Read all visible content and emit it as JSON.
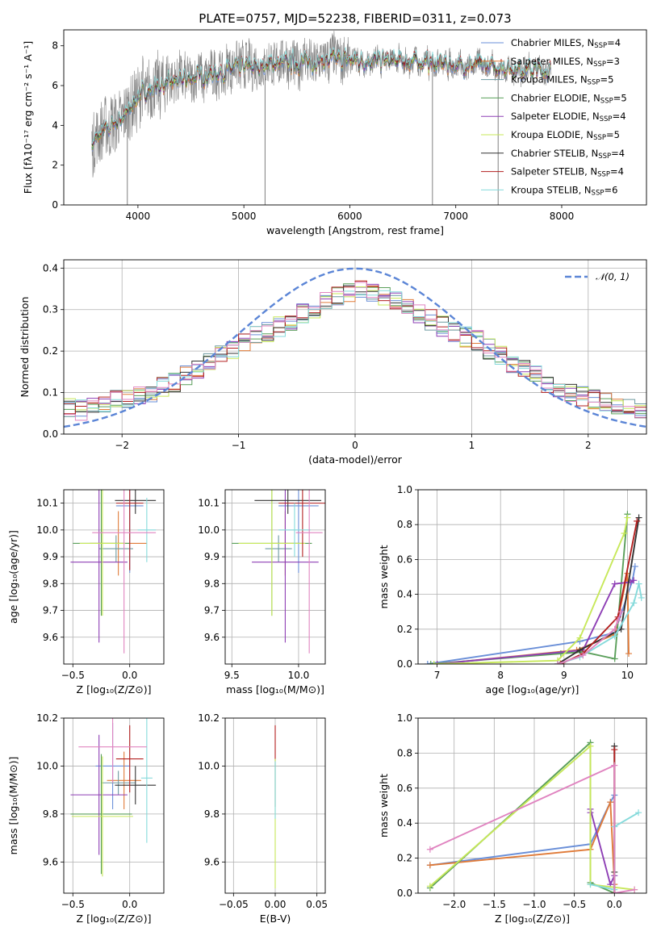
{
  "colors": {
    "Chabrier MILES": "#6a8fd8",
    "Salpeter MILES": "#e07b39",
    "Kroupa MILES": "#6d9aa0",
    "Chabrier ELODIE": "#5a9f5a",
    "Salpeter ELODIE": "#8e3fb5",
    "Kroupa ELODIE": "#c7e85a",
    "Chabrier STELIB": "#333333",
    "Salpeter STELIB": "#b32020",
    "Kroupa STELIB": "#85dadb",
    "Salpeter ELODIE pink": "#e084c0",
    "data": "#808080",
    "normal": "#5b85d6"
  },
  "chart_data": [
    {
      "id": "spectrum",
      "type": "line",
      "title": "PLATE=0757, MJD=52238, FIBERID=0311, z=0.073",
      "xlabel": "wavelength [Angstrom, rest frame]",
      "ylabel": "Flux [fλ10⁻¹⁷ erg cm⁻² s⁻¹ A⁻¹]",
      "xlim": [
        3300,
        8800
      ],
      "ylim": [
        0,
        8.8
      ],
      "xticks": [
        "4000",
        "5000",
        "6000",
        "7000",
        "8000"
      ],
      "yticks": [
        "0",
        "2",
        "4",
        "6",
        "8"
      ],
      "legend_position": "right",
      "legend": [
        "Chabrier MILES, N_SSP=4",
        "Salpeter MILES, N_SSP=3",
        "Kroupa MILES, N_SSP=5",
        "Chabrier ELODIE, N_SSP=5",
        "Salpeter ELODIE, N_SSP=4",
        "Kroupa ELODIE, N_SSP=5",
        "Chabrier STELIB, N_SSP=4",
        "Salpeter STELIB, N_SSP=4",
        "Kroupa STELIB, N_SSP=6"
      ],
      "continuum": {
        "x": [
          3570,
          3650,
          3750,
          3900,
          4000,
          4200,
          4500,
          4800,
          5000,
          5300,
          5600,
          5900,
          6200,
          6500,
          6800,
          7100,
          7400,
          7700,
          7900
        ],
        "y": [
          3.0,
          3.6,
          4.0,
          4.6,
          5.5,
          6.0,
          6.4,
          6.7,
          6.9,
          7.1,
          7.2,
          7.3,
          7.25,
          7.2,
          7.15,
          7.0,
          6.95,
          6.8,
          6.7
        ]
      }
    },
    {
      "id": "residuals",
      "type": "histogram",
      "xlabel": "(data-model)/error",
      "ylabel": "Normed distribution",
      "xlim": [
        -2.5,
        2.5
      ],
      "ylim": [
        0,
        0.42
      ],
      "xticks": [
        "−2",
        "−1",
        "0",
        "1",
        "2"
      ],
      "yticks": [
        "0.0",
        "0.1",
        "0.2",
        "0.3",
        "0.4"
      ],
      "legend": [
        "𝒩(0, 1)"
      ],
      "legend_position": "top-right",
      "bins": [
        -2.5,
        2.5,
        50
      ],
      "base": [
        0.063,
        0.058,
        0.065,
        0.075,
        0.085,
        0.082,
        0.09,
        0.1,
        0.112,
        0.125,
        0.142,
        0.155,
        0.17,
        0.19,
        0.205,
        0.22,
        0.235,
        0.245,
        0.26,
        0.275,
        0.29,
        0.305,
        0.318,
        0.33,
        0.34,
        0.345,
        0.34,
        0.33,
        0.318,
        0.305,
        0.29,
        0.275,
        0.26,
        0.245,
        0.235,
        0.225,
        0.205,
        0.19,
        0.17,
        0.155,
        0.142,
        0.125,
        0.112,
        0.1,
        0.09,
        0.085,
        0.08,
        0.072,
        0.065,
        0.06
      ]
    },
    {
      "id": "age-vs-Z",
      "type": "errorbar",
      "xlabel": "Z [log₁₀(Z/Z⊙)]",
      "ylabel": "age  [log₁₀(age/yr)]",
      "xlim": [
        -0.58,
        0.3
      ],
      "ylim": [
        9.5,
        10.15
      ],
      "xticks": [
        "−0.5",
        "0.0"
      ],
      "yticks": [
        "9.6",
        "9.7",
        "9.8",
        "9.9",
        "10.0",
        "10.1"
      ],
      "points": [
        {
          "c": "Chabrier MILES",
          "x": 0.0,
          "xerr": 0.12,
          "y": 10.09,
          "yerr": 0.25
        },
        {
          "c": "Salpeter MILES",
          "x": -0.1,
          "xerr": 0.25,
          "y": 9.95,
          "yerr": 0.12
        },
        {
          "c": "Kroupa MILES",
          "x": -0.12,
          "xerr": 0.15,
          "y": 9.93,
          "yerr": 0.05
        },
        {
          "c": "Chabrier ELODIE",
          "x": -0.25,
          "xerr": 0.25,
          "y": 9.95,
          "yerr": 0.27
        },
        {
          "c": "Salpeter ELODIE",
          "x": -0.27,
          "xerr": 0.25,
          "y": 9.88,
          "yerr": 0.3
        },
        {
          "c": "Kroupa ELODIE",
          "x": -0.24,
          "xerr": 0.2,
          "y": 9.95,
          "yerr": 0.27
        },
        {
          "c": "Chabrier STELIB",
          "x": 0.05,
          "xerr": 0.18,
          "y": 10.11,
          "yerr": 0.05
        },
        {
          "c": "Salpeter STELIB",
          "x": 0.0,
          "xerr": 0.12,
          "y": 10.1,
          "yerr": 0.25
        },
        {
          "c": "Kroupa STELIB",
          "x": 0.15,
          "xerr": 0.08,
          "y": 10.0,
          "yerr": 0.12
        },
        {
          "c": "Salpeter ELODIE pink",
          "x": -0.05,
          "xerr": 0.28,
          "y": 9.99,
          "yerr": 0.45
        }
      ]
    },
    {
      "id": "age-vs-mass",
      "type": "errorbar",
      "xlabel": "mass [log₁₀(M/M⊙)]",
      "ylabel": "",
      "xlim": [
        9.45,
        10.2
      ],
      "ylim": [
        9.5,
        10.15
      ],
      "xticks": [
        "9.5",
        "10.0"
      ],
      "yticks": [
        "9.6",
        "9.7",
        "9.8",
        "9.9",
        "10.0",
        "10.1"
      ],
      "points": [
        {
          "c": "Chabrier MILES",
          "x": 10.0,
          "xerr": 0.15,
          "y": 10.09,
          "yerr": 0.25
        },
        {
          "c": "Salpeter MILES",
          "x": 9.9,
          "xerr": 0.1,
          "y": 9.95,
          "yerr": 0.12
        },
        {
          "c": "Kroupa MILES",
          "x": 9.85,
          "xerr": 0.1,
          "y": 9.93,
          "yerr": 0.05
        },
        {
          "c": "Chabrier ELODIE",
          "x": 9.8,
          "xerr": 0.3,
          "y": 9.95,
          "yerr": 0.27
        },
        {
          "c": "Salpeter ELODIE",
          "x": 9.9,
          "xerr": 0.25,
          "y": 9.88,
          "yerr": 0.3
        },
        {
          "c": "Kroupa ELODIE",
          "x": 9.8,
          "xerr": 0.25,
          "y": 9.95,
          "yerr": 0.27
        },
        {
          "c": "Chabrier STELIB",
          "x": 9.92,
          "xerr": 0.25,
          "y": 10.11,
          "yerr": 0.05
        },
        {
          "c": "Salpeter STELIB",
          "x": 10.03,
          "xerr": 0.18,
          "y": 10.1,
          "yerr": 0.2
        },
        {
          "c": "Kroupa STELIB",
          "x": 9.97,
          "xerr": 0.12,
          "y": 10.0,
          "yerr": 0.1
        },
        {
          "c": "Salpeter ELODIE pink",
          "x": 10.08,
          "xerr": 0.1,
          "y": 9.99,
          "yerr": 0.45
        }
      ]
    },
    {
      "id": "mw-vs-age",
      "type": "line",
      "xlabel": "age  [log₁₀(age/yr)]",
      "ylabel": "mass weight",
      "xlim": [
        6.7,
        10.3
      ],
      "ylim": [
        0,
        1.0
      ],
      "xticks": [
        "7",
        "8",
        "9",
        "10"
      ],
      "yticks": [
        "0.0",
        "0.2",
        "0.4",
        "0.6",
        "0.8",
        "1.0"
      ],
      "series": [
        {
          "c": "Chabrier MILES",
          "x": [
            6.85,
            9.25,
            9.8,
            10.08,
            10.12
          ],
          "y": [
            0.0,
            0.13,
            0.18,
            0.48,
            0.56
          ]
        },
        {
          "c": "Salpeter MILES",
          "x": [
            7.0,
            9.2,
            9.8,
            10.0,
            10.02
          ],
          "y": [
            0.0,
            0.08,
            0.17,
            0.52,
            0.06
          ]
        },
        {
          "c": "Chabrier ELODIE",
          "x": [
            6.9,
            8.95,
            9.3,
            9.8,
            10.0
          ],
          "y": [
            0.0,
            0.06,
            0.07,
            0.03,
            0.86
          ]
        },
        {
          "c": "Salpeter ELODIE",
          "x": [
            7.0,
            9.3,
            9.8,
            10.05,
            10.1
          ],
          "y": [
            0.0,
            0.08,
            0.46,
            0.47,
            0.48
          ]
        },
        {
          "c": "Kroupa ELODIE",
          "x": [
            6.95,
            8.9,
            9.25,
            9.95,
            10.0
          ],
          "y": [
            0.0,
            0.02,
            0.15,
            0.75,
            0.84
          ]
        },
        {
          "c": "Chabrier STELIB",
          "x": [
            8.9,
            9.25,
            9.9,
            10.18
          ],
          "y": [
            0.0,
            0.08,
            0.2,
            0.84
          ]
        },
        {
          "c": "Salpeter STELIB",
          "x": [
            8.95,
            9.3,
            9.85,
            10.15
          ],
          "y": [
            0.0,
            0.06,
            0.27,
            0.82
          ]
        },
        {
          "c": "Kroupa STELIB",
          "x": [
            8.9,
            9.25,
            9.8,
            10.1,
            10.18,
            10.22
          ],
          "y": [
            0.0,
            0.04,
            0.16,
            0.35,
            0.46,
            0.38
          ]
        },
        {
          "c": "Salpeter ELODIE pink",
          "x": [
            8.9,
            9.3,
            9.8,
            9.85,
            9.9
          ],
          "y": [
            0.0,
            0.05,
            0.2,
            0.25,
            0.3
          ]
        }
      ]
    },
    {
      "id": "mass-vs-Z",
      "type": "errorbar",
      "xlabel": "Z [log₁₀(Z/Z⊙)]",
      "ylabel": "mass [log₁₀(M/M⊙)]",
      "xlim": [
        -0.58,
        0.3
      ],
      "ylim": [
        9.47,
        10.2
      ],
      "xticks": [
        "−0.5",
        "0.0"
      ],
      "yticks": [
        "9.6",
        "9.8",
        "10.0",
        "10.2"
      ],
      "points": [
        {
          "c": "Chabrier MILES",
          "x": -0.15,
          "xerr": 0.15,
          "y": 10.0,
          "yerr": 0.18
        },
        {
          "c": "Salpeter MILES",
          "x": -0.05,
          "xerr": 0.15,
          "y": 9.94,
          "yerr": 0.12
        },
        {
          "c": "Kroupa MILES",
          "x": -0.1,
          "xerr": 0.15,
          "y": 9.93,
          "yerr": 0.05
        },
        {
          "c": "Chabrier ELODIE",
          "x": -0.25,
          "xerr": 0.27,
          "y": 9.8,
          "yerr": 0.25
        },
        {
          "c": "Salpeter ELODIE",
          "x": -0.27,
          "xerr": 0.25,
          "y": 9.88,
          "yerr": 0.25
        },
        {
          "c": "Kroupa ELODIE",
          "x": -0.24,
          "xerr": 0.27,
          "y": 9.79,
          "yerr": 0.25
        },
        {
          "c": "Chabrier STELIB",
          "x": 0.05,
          "xerr": 0.18,
          "y": 9.92,
          "yerr": 0.08
        },
        {
          "c": "Salpeter STELIB",
          "x": 0.0,
          "xerr": 0.12,
          "y": 10.03,
          "yerr": 0.14
        },
        {
          "c": "Kroupa STELIB",
          "x": 0.15,
          "xerr": 0.05,
          "y": 9.95,
          "yerr": 0.27
        },
        {
          "c": "Salpeter ELODIE pink",
          "x": -0.15,
          "xerr": 0.3,
          "y": 10.08,
          "yerr": 0.15
        }
      ]
    },
    {
      "id": "mass-vs-EBV",
      "type": "errorbar",
      "xlabel": "E(B-V)",
      "ylabel": "",
      "xlim": [
        -0.06,
        0.06
      ],
      "ylim": [
        9.47,
        10.2
      ],
      "xticks": [
        "−0.05",
        "0.00",
        "0.05"
      ],
      "yticks": [
        "9.6",
        "9.8",
        "10.0",
        "10.2"
      ],
      "points": [
        {
          "c": "Salpeter STELIB",
          "x": 0.0,
          "xerr": 0.0,
          "y": 10.0,
          "yerr": 0.17
        },
        {
          "c": "Kroupa ELODIE",
          "x": 0.0,
          "xerr": 0.0,
          "y": 9.76,
          "yerr": 0.27
        },
        {
          "c": "Kroupa STELIB",
          "x": 0.0,
          "xerr": 0.0,
          "y": 9.9,
          "yerr": 0.12
        }
      ]
    },
    {
      "id": "mw-vs-Z",
      "type": "line",
      "xlabel": "Z [log₁₀(Z/Z⊙)]",
      "ylabel": "mass weight",
      "xlim": [
        -2.45,
        0.4
      ],
      "ylim": [
        0,
        1.0
      ],
      "xticks": [
        "−2.0",
        "−1.5",
        "−1.0",
        "−0.5",
        "0.0"
      ],
      "yticks": [
        "0.0",
        "0.2",
        "0.4",
        "0.6",
        "0.8",
        "1.0"
      ],
      "series": [
        {
          "c": "Chabrier MILES",
          "x": [
            -2.3,
            -0.3,
            -0.05,
            0.0
          ],
          "y": [
            0.16,
            0.28,
            0.52,
            0.56
          ]
        },
        {
          "c": "Salpeter MILES",
          "x": [
            -2.3,
            -0.3,
            -0.05,
            0.0
          ],
          "y": [
            0.16,
            0.25,
            0.52,
            0.05
          ]
        },
        {
          "c": "Chabrier ELODIE",
          "x": [
            -2.3,
            -0.3,
            -0.3,
            0.0
          ],
          "y": [
            0.03,
            0.86,
            0.06,
            0.0
          ]
        },
        {
          "c": "Salpeter ELODIE",
          "x": [
            -0.3,
            -0.3,
            -0.05,
            0.0
          ],
          "y": [
            0.46,
            0.48,
            0.05,
            0.1
          ]
        },
        {
          "c": "Kroupa ELODIE",
          "x": [
            -2.3,
            -0.3,
            -0.3,
            0.25
          ],
          "y": [
            0.04,
            0.84,
            0.05,
            0.02
          ]
        },
        {
          "c": "Chabrier STELIB",
          "x": [
            0.0,
            0.0,
            0.0
          ],
          "y": [
            0.84,
            0.12,
            0.0
          ]
        },
        {
          "c": "Salpeter STELIB",
          "x": [
            0.0,
            0.0
          ],
          "y": [
            0.82,
            0.0
          ]
        },
        {
          "c": "Kroupa STELIB",
          "x": [
            -0.3,
            0.0,
            0.0,
            0.3
          ],
          "y": [
            0.05,
            0.02,
            0.38,
            0.46
          ]
        },
        {
          "c": "Salpeter ELODIE pink",
          "x": [
            -2.3,
            0.0,
            0.0,
            0.25
          ],
          "y": [
            0.25,
            0.73,
            0.0,
            0.02
          ]
        }
      ]
    }
  ]
}
